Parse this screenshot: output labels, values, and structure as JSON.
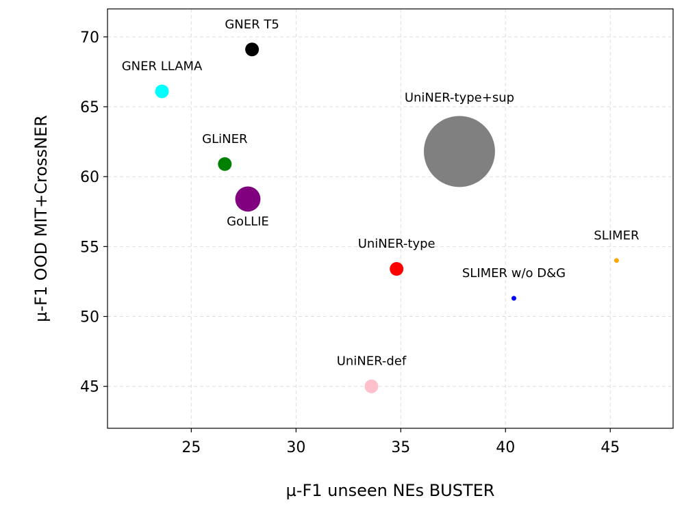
{
  "chart_data": {
    "type": "scatter",
    "xlabel": "µ-F1 unseen NEs BUSTER",
    "ylabel": "µ-F1 OOD MIT+CrossNER",
    "xlim": [
      21,
      48
    ],
    "ylim": [
      42,
      72
    ],
    "xticks": [
      25,
      30,
      35,
      40,
      45
    ],
    "yticks": [
      45,
      50,
      55,
      60,
      65,
      70
    ],
    "grid": true,
    "points": [
      {
        "label": "GNER T5",
        "x": 27.9,
        "y": 69.1,
        "color": "#000000",
        "size": 1,
        "label_pos": "above"
      },
      {
        "label": "GNER LLAMA",
        "x": 23.6,
        "y": 66.1,
        "color": "#00ffff",
        "size": 1,
        "label_pos": "above"
      },
      {
        "label": "GLiNER",
        "x": 26.6,
        "y": 60.9,
        "color": "#008000",
        "size": 1,
        "label_pos": "above"
      },
      {
        "label": "GoLLIE",
        "x": 27.7,
        "y": 58.4,
        "color": "#800080",
        "size": 3.4,
        "label_pos": "below"
      },
      {
        "label": "UniNER-type+sup",
        "x": 37.8,
        "y": 61.8,
        "color": "#808080",
        "size": 27,
        "label_pos": "above"
      },
      {
        "label": "UniNER-type",
        "x": 34.8,
        "y": 53.4,
        "color": "#ff0000",
        "size": 1,
        "label_pos": "above"
      },
      {
        "label": "SLIMER w/o D&G",
        "x": 40.4,
        "y": 51.3,
        "color": "#0000ff",
        "size": 0.08,
        "label_pos": "above"
      },
      {
        "label": "SLIMER",
        "x": 45.3,
        "y": 54.0,
        "color": "#ffa500",
        "size": 0.08,
        "label_pos": "above"
      },
      {
        "label": "UniNER-def",
        "x": 33.6,
        "y": 45.0,
        "color": "#ffc0cb",
        "size": 1,
        "label_pos": "above"
      }
    ]
  }
}
